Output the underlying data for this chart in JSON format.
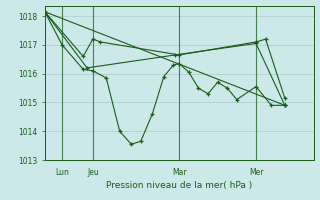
{
  "background_color": "#cce8e8",
  "grid_color": "#aacccc",
  "line_color": "#1a5c1a",
  "xlabel": "Pression niveau de la mer( hPa )",
  "xlim": [
    0,
    14.0
  ],
  "ylim": [
    1013.0,
    1018.35
  ],
  "yticks": [
    1013,
    1014,
    1015,
    1016,
    1017,
    1018
  ],
  "xtick_labels": [
    "Lun",
    "Jeu",
    "Mar",
    "Mer"
  ],
  "xtick_positions": [
    0.9,
    2.5,
    7.0,
    11.0
  ],
  "vline_positions": [
    0.9,
    2.5,
    7.0,
    11.0
  ],
  "series": [
    [
      0.0,
      1018.15,
      0.9,
      1017.0,
      2.0,
      1016.15,
      2.5,
      1016.1,
      3.2,
      1015.85,
      3.9,
      1014.0,
      4.5,
      1013.55,
      5.0,
      1013.65,
      5.6,
      1014.6,
      6.2,
      1015.9,
      6.7,
      1016.3,
      7.0,
      1016.35,
      7.5,
      1016.05,
      8.0,
      1015.5,
      8.5,
      1015.3,
      9.0,
      1015.7,
      9.5,
      1015.5,
      10.0,
      1015.1,
      11.0,
      1015.55,
      11.8,
      1014.9,
      12.5,
      1014.9
    ],
    [
      0.0,
      1018.15,
      2.0,
      1016.6,
      2.5,
      1017.2,
      2.9,
      1017.1,
      7.0,
      1016.65,
      11.0,
      1017.1,
      11.5,
      1017.2,
      12.5,
      1015.15
    ],
    [
      0.0,
      1018.15,
      2.2,
      1016.2,
      6.8,
      1016.65,
      11.0,
      1017.05,
      12.5,
      1014.9
    ],
    [
      0.0,
      1018.15,
      12.5,
      1014.9
    ]
  ]
}
